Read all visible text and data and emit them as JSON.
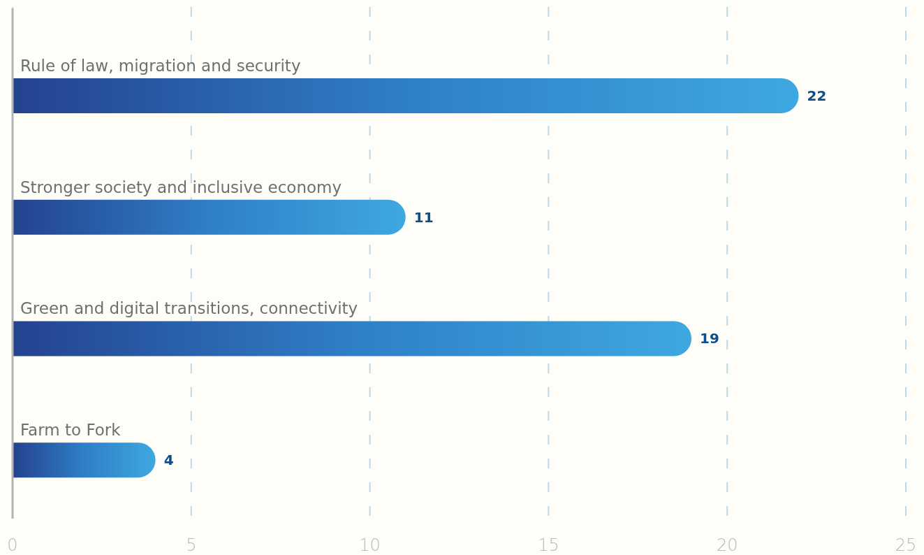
{
  "chart_data": {
    "type": "bar",
    "orientation": "horizontal",
    "categories": [
      "Rule of law, migration and security",
      "Stronger society and inclusive economy",
      "Green and digital transitions, connectivity",
      "Farm to Fork"
    ],
    "values": [
      22,
      11,
      19,
      4
    ],
    "color": "#2f7fc6",
    "xlim": [
      0,
      25
    ],
    "xticks": [
      0,
      5,
      10,
      15,
      20,
      25
    ],
    "grid": "x",
    "data_labels": true
  }
}
